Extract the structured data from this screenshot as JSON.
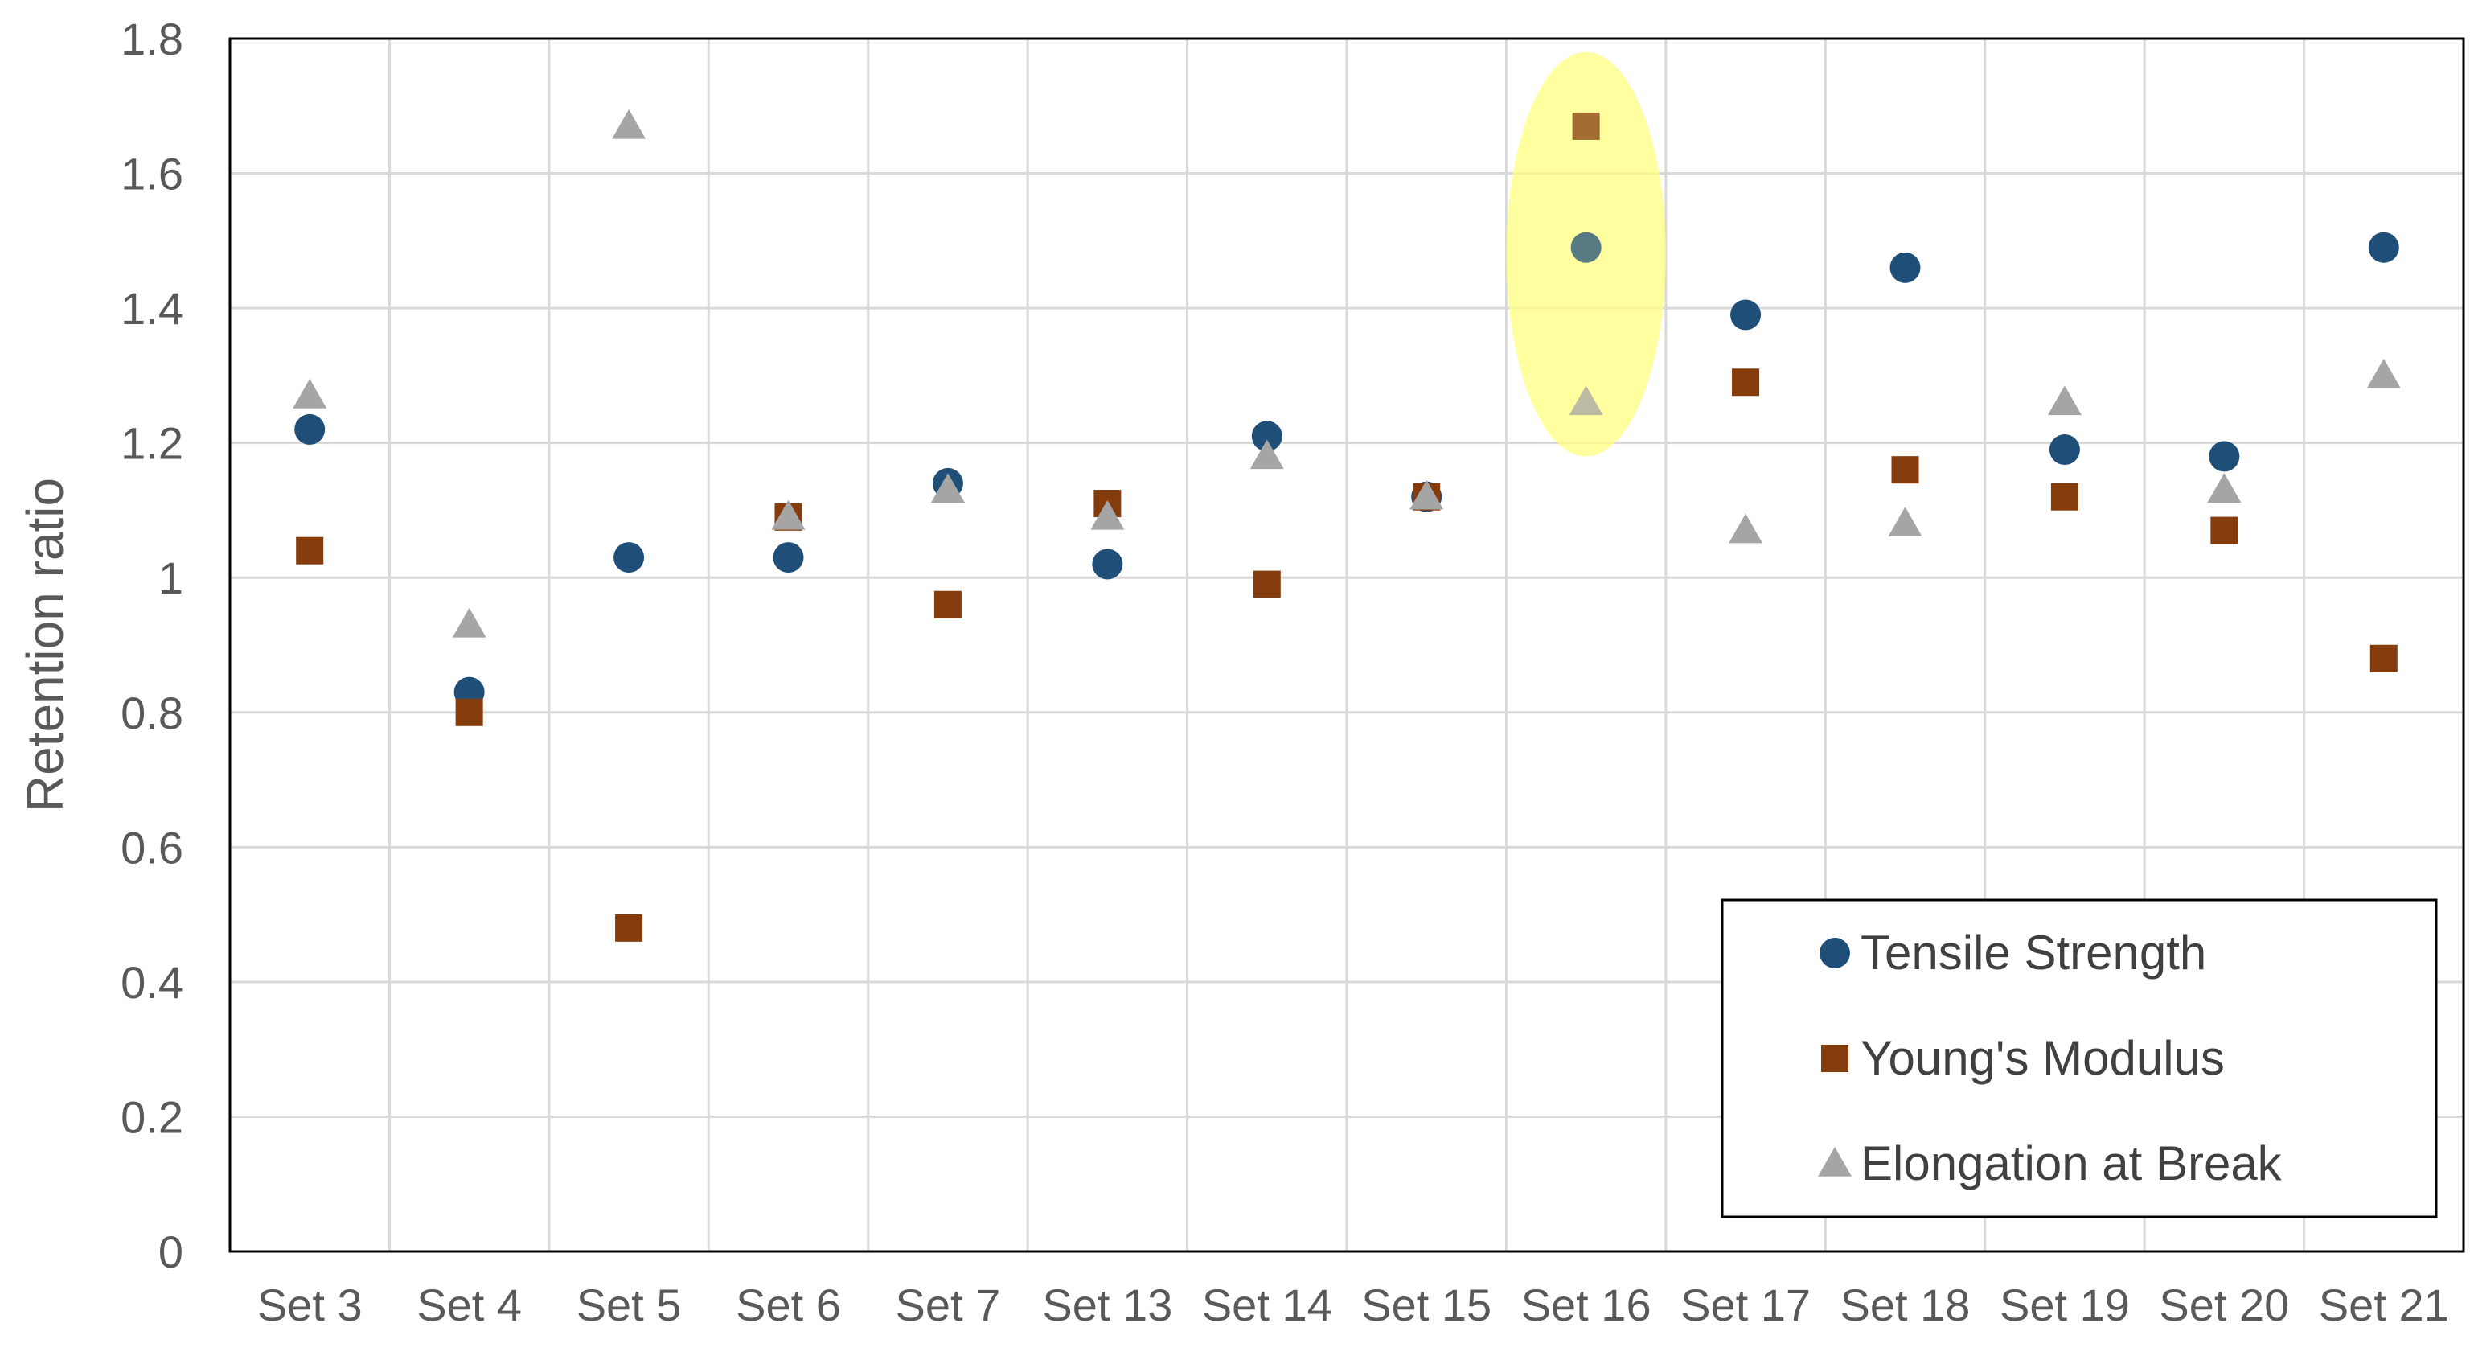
{
  "chart_data": {
    "type": "scatter",
    "ylabel": "Retention ratio",
    "xlabel": "",
    "ylim": [
      0,
      1.8
    ],
    "yticks": [
      "0",
      "0.2",
      "0.4",
      "0.6",
      "0.8",
      "1",
      "1.2",
      "1.4",
      "1.6",
      "1.8"
    ],
    "ytick_values": [
      0,
      0.2,
      0.4,
      0.6,
      0.8,
      1.0,
      1.2,
      1.4,
      1.6,
      1.8
    ],
    "categories": [
      "Set 3",
      "Set 4",
      "Set 5",
      "Set 6",
      "Set 7",
      "Set 13",
      "Set 14",
      "Set 15",
      "Set 16",
      "Set 17",
      "Set 18",
      "Set 19",
      "Set 20",
      "Set 21"
    ],
    "grid": true,
    "legend_position": "bottom-right",
    "series": [
      {
        "name": "Tensile Strength",
        "marker": "circle",
        "color": "#1F4E79",
        "values": [
          1.22,
          0.83,
          1.03,
          1.03,
          1.14,
          1.02,
          1.21,
          1.12,
          1.49,
          1.39,
          1.46,
          1.19,
          1.18,
          1.49
        ]
      },
      {
        "name": "Young's Modulus",
        "marker": "square",
        "color": "#843C0C",
        "values": [
          1.04,
          0.8,
          0.48,
          1.09,
          0.96,
          1.11,
          0.99,
          1.12,
          1.67,
          1.29,
          1.16,
          1.12,
          1.07,
          0.88
        ]
      },
      {
        "name": "Elongation at Break",
        "marker": "triangle",
        "color": "#A5A5A5",
        "values": [
          1.27,
          0.93,
          1.67,
          1.09,
          1.13,
          1.09,
          1.18,
          1.12,
          1.26,
          1.07,
          1.08,
          1.26,
          1.13,
          1.3
        ]
      }
    ],
    "highlight": {
      "category": "Set 16",
      "shape": "ellipse",
      "color": "#FFFF80",
      "y_range": [
        1.18,
        1.78
      ]
    }
  }
}
